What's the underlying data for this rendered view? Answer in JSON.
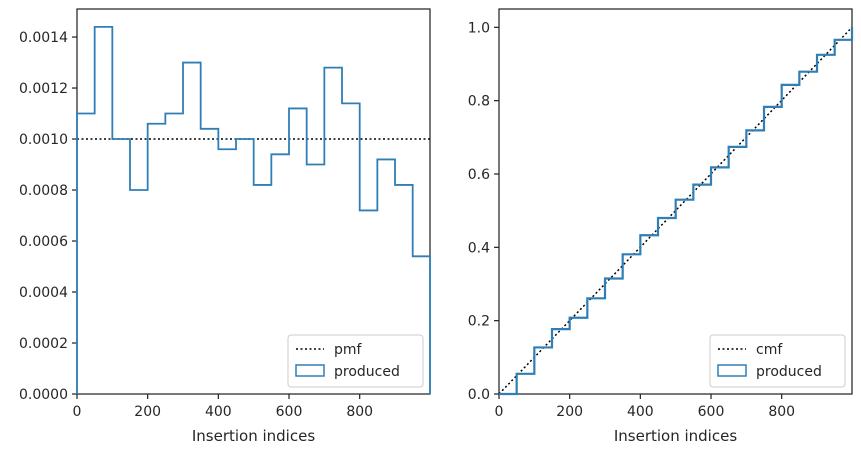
{
  "chart_data": [
    {
      "type": "histogram-step",
      "xlabel": "Insertion indices",
      "ylabel": "",
      "xlim": [
        0,
        999
      ],
      "ylim": [
        0,
        0.00151
      ],
      "xticks": [
        0,
        200,
        400,
        600,
        800
      ],
      "xtick_labels": [
        "0",
        "200",
        "400",
        "600",
        "800"
      ],
      "yticks": [
        0,
        0.0002,
        0.0004,
        0.0006,
        0.0008,
        0.001,
        0.0012,
        0.0014
      ],
      "ytick_labels": [
        "0.0000",
        "0.0002",
        "0.0004",
        "0.0006",
        "0.0008",
        "0.0010",
        "0.0012",
        "0.0014"
      ],
      "grid": false,
      "legend_position": "lower-right",
      "reference_line": {
        "name": "pmf",
        "value": 0.001,
        "style": "dotted",
        "color": "#000000"
      },
      "series": [
        {
          "name": "produced",
          "color": "#2f7fb6",
          "bin_edges": [
            0,
            50,
            100,
            150,
            200,
            250,
            300,
            350,
            400,
            450,
            500,
            550,
            600,
            650,
            700,
            750,
            800,
            850,
            900,
            950,
            999
          ],
          "values": [
            0.0011,
            0.00144,
            0.001,
            0.0008,
            0.00106,
            0.0011,
            0.0013,
            0.00104,
            0.00096,
            0.001,
            0.00082,
            0.00094,
            0.00112,
            0.0009,
            0.00128,
            0.00114,
            0.00072,
            0.00092,
            0.00082,
            0.00054
          ]
        }
      ]
    },
    {
      "type": "ecdf-step",
      "xlabel": "Insertion indices",
      "ylabel": "",
      "xlim": [
        0,
        999
      ],
      "ylim": [
        0,
        1.05
      ],
      "xticks": [
        0,
        200,
        400,
        600,
        800
      ],
      "xtick_labels": [
        "0",
        "200",
        "400",
        "600",
        "800"
      ],
      "yticks": [
        0,
        0.2,
        0.4,
        0.6,
        0.8,
        1.0
      ],
      "ytick_labels": [
        "0.0",
        "0.2",
        "0.4",
        "0.6",
        "0.8",
        "1.0"
      ],
      "grid": false,
      "legend_position": "lower-right",
      "reference_line": {
        "name": "cmf",
        "from": [
          0,
          0
        ],
        "to": [
          999,
          1.0
        ],
        "style": "dotted",
        "color": "#000000"
      },
      "series": [
        {
          "name": "produced",
          "color": "#2f7fb6",
          "x": [
            0,
            50,
            100,
            150,
            200,
            250,
            300,
            350,
            400,
            450,
            500,
            550,
            600,
            650,
            700,
            750,
            800,
            850,
            900,
            950,
            999
          ],
          "values": [
            0.0,
            0.055,
            0.127,
            0.177,
            0.208,
            0.261,
            0.315,
            0.381,
            0.433,
            0.48,
            0.53,
            0.571,
            0.618,
            0.674,
            0.719,
            0.783,
            0.843,
            0.879,
            0.925,
            0.966,
            1.0
          ]
        }
      ]
    }
  ]
}
